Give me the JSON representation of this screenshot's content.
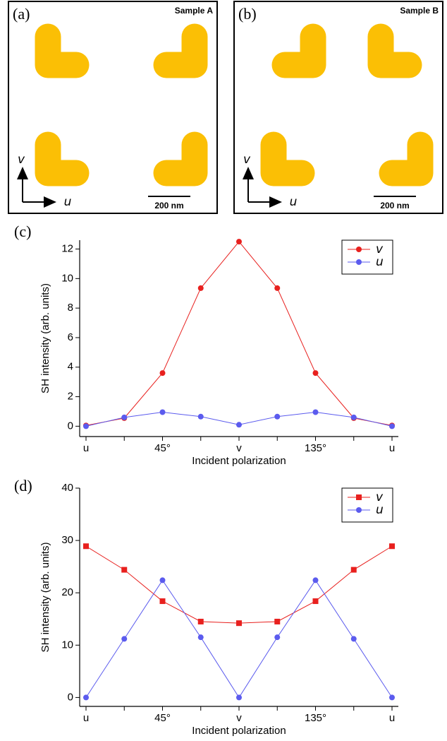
{
  "panels": [
    {
      "label": "(a)",
      "sample": "Sample A",
      "scale": "200 nm",
      "axis_v": "v",
      "axis_u": "u"
    },
    {
      "label": "(b)",
      "sample": "Sample B",
      "scale": "200 nm",
      "axis_v": "v",
      "axis_u": "u"
    }
  ],
  "chart_data": [
    {
      "type": "line",
      "label": "(c)",
      "xlabel": "Incident polarization",
      "ylabel": "SH intensity (arb. units)",
      "categories": [
        "u",
        null,
        "45°",
        null,
        "v",
        null,
        "135°",
        null,
        "u"
      ],
      "ylim": [
        -0.7,
        12.6
      ],
      "yticks": [
        0,
        2,
        4,
        6,
        8,
        10,
        12
      ],
      "legend": "upper right",
      "series": [
        {
          "name": "v",
          "color": "#e8201e",
          "marker": "circle",
          "values": [
            0.05,
            0.55,
            3.6,
            9.35,
            12.5,
            9.35,
            3.6,
            0.55,
            0.05
          ]
        },
        {
          "name": "u",
          "color": "#5b5bee",
          "marker": "circle",
          "values": [
            0,
            0.6,
            0.95,
            0.65,
            0.1,
            0.65,
            0.95,
            0.6,
            0
          ]
        }
      ]
    },
    {
      "type": "line",
      "label": "(d)",
      "xlabel": "Incident polarization",
      "ylabel": "SH intensity (arb. units)",
      "categories": [
        "u",
        null,
        "45°",
        null,
        "v",
        null,
        "135°",
        null,
        "u"
      ],
      "ylim": [
        -1.7,
        40
      ],
      "yticks": [
        0,
        10,
        20,
        30,
        40
      ],
      "legend": "upper right",
      "series": [
        {
          "name": "v",
          "color": "#e8201e",
          "marker": "square",
          "values": [
            28.9,
            24.4,
            18.4,
            14.5,
            14.2,
            14.5,
            18.4,
            24.4,
            28.9
          ]
        },
        {
          "name": "u",
          "color": "#5b5bee",
          "marker": "circle",
          "values": [
            0,
            11.2,
            22.4,
            11.5,
            0,
            11.5,
            22.4,
            11.2,
            0
          ]
        }
      ]
    }
  ]
}
